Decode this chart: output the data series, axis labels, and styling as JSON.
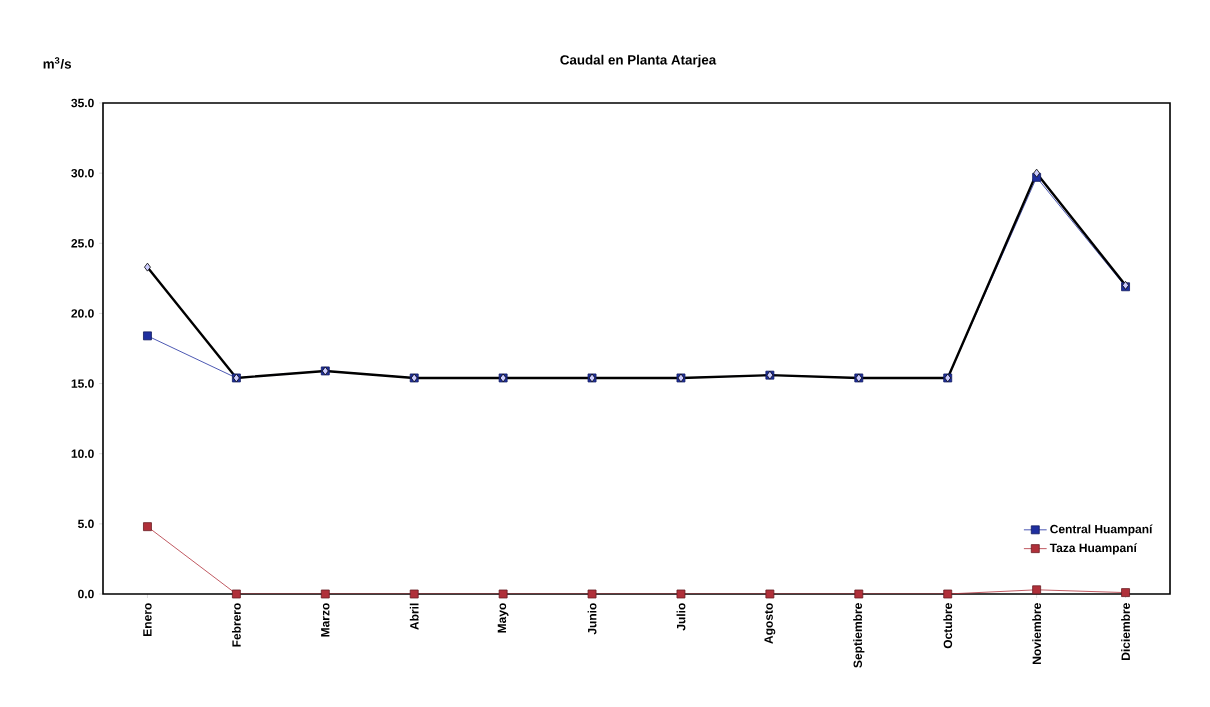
{
  "chart_data": {
    "type": "line",
    "title": "Caudal en Planta Atarjea",
    "ylabel": "m$^{3}$/s",
    "categories": [
      "Enero",
      "Febrero",
      "Marzo",
      "Abril",
      "Mayo",
      "Junio",
      "Julio",
      "Agosto",
      "Septiembre",
      "Octubre",
      "Noviembre",
      "Diciembre"
    ],
    "series": [
      {
        "name": "Central Huampaní",
        "color": "#1f2f9f",
        "marker": "square",
        "values": [
          18.4,
          15.4,
          15.9,
          15.4,
          15.4,
          15.4,
          15.4,
          15.6,
          15.4,
          15.4,
          29.7,
          21.9
        ]
      },
      {
        "color": "#000000",
        "marker": "diamond",
        "values": [
          23.3,
          15.4,
          15.9,
          15.4,
          15.4,
          15.4,
          15.4,
          15.6,
          15.4,
          15.4,
          30.0,
          22.0
        ]
      },
      {
        "name": "Taza Huampaní",
        "color": "#b0303a",
        "marker": "square",
        "values": [
          4.8,
          0.0,
          0.0,
          0.0,
          0.0,
          0.0,
          0.0,
          0.0,
          0.0,
          0.0,
          0.3,
          0.1
        ]
      }
    ],
    "ylim": [
      0,
      35
    ],
    "yticks": [
      {
        "value": 0,
        "label": "0.0"
      },
      {
        "value": 5,
        "label": "5.0"
      },
      {
        "value": 10,
        "label": "10.0"
      },
      {
        "value": 15,
        "label": "15.0"
      },
      {
        "value": 20,
        "label": "20.0"
      },
      {
        "value": 25,
        "label": "25.0"
      },
      {
        "value": 30,
        "label": "30.0"
      },
      {
        "value": 35,
        "label": "35.0"
      }
    ],
    "grid": false,
    "legend": "bottom right",
    "line_style": "solid"
  }
}
